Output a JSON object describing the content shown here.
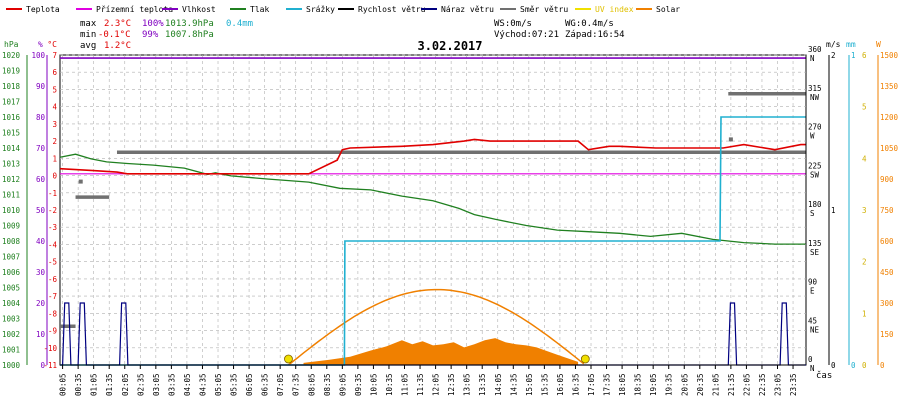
{
  "legend": [
    {
      "label": "Teplota",
      "color": "#e00000"
    },
    {
      "label": "Přízemní teplota",
      "color": "#e000e0"
    },
    {
      "label": "Vlhkost",
      "color": "#8000c0"
    },
    {
      "label": "Tlak",
      "color": "#208020"
    },
    {
      "label": "Srážky",
      "color": "#20b0d0"
    },
    {
      "label": "Rychlost větru",
      "color": "#000000"
    },
    {
      "label": "Náraz větru",
      "color": "#000080"
    },
    {
      "label": "Směr větru",
      "color": "#707070"
    },
    {
      "label": "UV index",
      "color": "#f0e000"
    },
    {
      "label": "Solar",
      "color": "#f08000"
    }
  ],
  "stats": {
    "max_label": "max",
    "max_temp": "2.3°C",
    "max_hum": "100%",
    "max_press": "1013.9hPa",
    "max_rain": "0.4mm",
    "min_label": "min",
    "min_temp": "-0.1°C",
    "min_hum": "99%",
    "min_press": "1007.8hPa",
    "avg_label": "avg",
    "avg_temp": "1.2°C"
  },
  "wind_info": {
    "ws": "WS:0m/s",
    "wg": "WG:0.4m/s"
  },
  "sun_info": {
    "sunrise": "Východ:07:21",
    "sunset": "Západ:16:54"
  },
  "chart_data": {
    "type": "line",
    "title": "3.02.2017",
    "x_tick_labels": [
      "00:05",
      "00:35",
      "01:05",
      "01:35",
      "02:05",
      "02:35",
      "03:05",
      "03:35",
      "04:05",
      "04:35",
      "05:05",
      "05:35",
      "06:05",
      "06:35",
      "07:05",
      "07:35",
      "08:05",
      "08:35",
      "09:05",
      "09:35",
      "10:05",
      "10:35",
      "11:05",
      "11:35",
      "12:05",
      "12:35",
      "13:05",
      "13:35",
      "14:05",
      "14:35",
      "15:05",
      "15:35",
      "16:05",
      "16:35",
      "17:05",
      "17:35",
      "18:05",
      "18:35",
      "19:05",
      "19:35",
      "20:05",
      "20:35",
      "21:05",
      "21:35",
      "22:05",
      "22:35",
      "23:05",
      "23:35"
    ],
    "x_axis_label": "čas",
    "axes_left": {
      "pressure": {
        "unit": "hPa",
        "range": [
          1000,
          1020
        ],
        "ticks": [
          "1000",
          "1001",
          "1002",
          "1003",
          "1004",
          "1005",
          "1006",
          "1007",
          "1008",
          "1009",
          "1010",
          "1011",
          "1012",
          "1013",
          "1014",
          "1015",
          "1016",
          "1017",
          "1018",
          "1019",
          "1020"
        ],
        "color": "#208020"
      },
      "humidity": {
        "unit": "%",
        "range": [
          0,
          100
        ],
        "ticks": [
          "0",
          "10",
          "20",
          "30",
          "40",
          "50",
          "60",
          "70",
          "80",
          "90",
          "100"
        ],
        "color": "#8000c0"
      },
      "temperature": {
        "unit": "°C",
        "range": [
          -11,
          7
        ],
        "ticks": [
          "-11",
          "-10",
          "-9",
          "-8",
          "-7",
          "-6",
          "-5",
          "-4",
          "-3",
          "-2",
          "-1",
          "0",
          "1",
          "2",
          "3",
          "4",
          "5",
          "6",
          "7"
        ],
        "color": "#e00000"
      }
    },
    "axes_right": {
      "wind_direction": {
        "range": [
          0,
          360
        ],
        "ticks": [
          "0 N",
          "45 NE",
          "90 E",
          "135 SE",
          "180 S",
          "225 SW",
          "270 W",
          "315 NW",
          "360 N"
        ]
      },
      "wind_speed": {
        "unit": "m/s",
        "range": [
          0,
          2
        ],
        "ticks": [
          "0",
          "1",
          "2"
        ]
      },
      "rain": {
        "unit": "mm",
        "range": [
          0,
          1
        ],
        "ticks": [
          "0",
          "1"
        ]
      },
      "uv": {
        "range": [
          0,
          6
        ],
        "ticks": [
          "0",
          "1",
          "2",
          "3",
          "4",
          "5",
          "6"
        ]
      },
      "solar": {
        "unit": "W",
        "range": [
          0,
          1500
        ],
        "ticks": [
          "0",
          "150",
          "300",
          "450",
          "600",
          "750",
          "900",
          "1050",
          "1200",
          "1350",
          "1500"
        ]
      }
    },
    "series": [
      {
        "name": "Teplota",
        "unit": "°C",
        "x": [
          0,
          60,
          110,
          130,
          150,
          200,
          290,
          430,
          480,
          535,
          545,
          560,
          660,
          720,
          780,
          800,
          830,
          1000,
          1020,
          1060,
          1080,
          1150,
          1200,
          1280,
          1320,
          1380,
          1430,
          1439
        ],
        "y": [
          0.4,
          0.3,
          0.2,
          0.1,
          0.1,
          0.1,
          0.1,
          0.1,
          0.1,
          0.9,
          1.5,
          1.6,
          1.7,
          1.8,
          2.0,
          2.1,
          2.0,
          2.0,
          1.5,
          1.7,
          1.7,
          1.6,
          1.6,
          1.6,
          1.8,
          1.5,
          1.8,
          1.8
        ]
      },
      {
        "name": "Přízemní teplota",
        "unit": "°C",
        "x": [
          0,
          1439
        ],
        "y": [
          0.1,
          0.1
        ]
      },
      {
        "name": "Vlhkost",
        "unit": "%",
        "x": [
          0,
          1439
        ],
        "y": [
          99,
          99
        ]
      },
      {
        "name": "Tlak",
        "unit": "hPa",
        "x": [
          0,
          30,
          60,
          90,
          130,
          180,
          240,
          285,
          300,
          330,
          400,
          480,
          540,
          600,
          660,
          720,
          770,
          800,
          840,
          900,
          960,
          1020,
          1080,
          1140,
          1200,
          1260,
          1290,
          1320,
          1380,
          1439
        ],
        "y": [
          1013.4,
          1013.6,
          1013.3,
          1013.1,
          1013.0,
          1012.9,
          1012.7,
          1012.3,
          1012.4,
          1012.2,
          1012.0,
          1011.8,
          1011.4,
          1011.3,
          1010.9,
          1010.6,
          1010.1,
          1009.7,
          1009.4,
          1009.0,
          1008.7,
          1008.6,
          1008.5,
          1008.3,
          1008.5,
          1008.1,
          1008.0,
          1007.9,
          1007.8,
          1007.8
        ]
      },
      {
        "name": "Srážky",
        "unit": "mm",
        "x": [
          0,
          549,
          550,
          1274,
          1276,
          1439
        ],
        "y": [
          0.0,
          0.0,
          0.4,
          0.4,
          0.8,
          0.8
        ]
      },
      {
        "name": "Rychlost větru",
        "unit": "m/s",
        "x": [
          0,
          1439
        ],
        "y": [
          0,
          0
        ]
      },
      {
        "name": "Náraz větru",
        "unit": "m/s",
        "pulses_start_min": [
          5,
          35,
          115,
          1290,
          1390
        ],
        "pulse_value": 0.4
      },
      {
        "name": "Směr větru",
        "unit": "°",
        "segments": [
          {
            "x": [
              0,
              30
            ],
            "y": [
              45,
              45
            ]
          },
          {
            "x": [
              30,
              95
            ],
            "y": [
              195,
              195
            ]
          },
          {
            "x": [
              110,
              1439
            ],
            "y": [
              247,
              247
            ]
          },
          {
            "x": [
              1290,
              1439
            ],
            "y": [
              315,
              315
            ]
          }
        ],
        "points": [
          {
            "x": 40,
            "y": 213
          },
          {
            "x": 1295,
            "y": 262
          }
        ]
      },
      {
        "name": "UV index",
        "unit": "",
        "x": [],
        "y": []
      },
      {
        "name": "Solar",
        "unit": "W/m²",
        "theoretical_peak": 365,
        "sunrise_min": 441,
        "sunset_min": 1014,
        "x": [
          470,
          520,
          560,
          600,
          630,
          660,
          680,
          700,
          720,
          740,
          760,
          780,
          800,
          820,
          840,
          860,
          880,
          900,
          920,
          960,
          1000
        ],
        "y": [
          10,
          25,
          40,
          70,
          90,
          120,
          100,
          115,
          95,
          100,
          110,
          85,
          100,
          120,
          130,
          110,
          100,
          95,
          85,
          50,
          15
        ]
      }
    ],
    "grid": true,
    "legend_position": "top"
  }
}
